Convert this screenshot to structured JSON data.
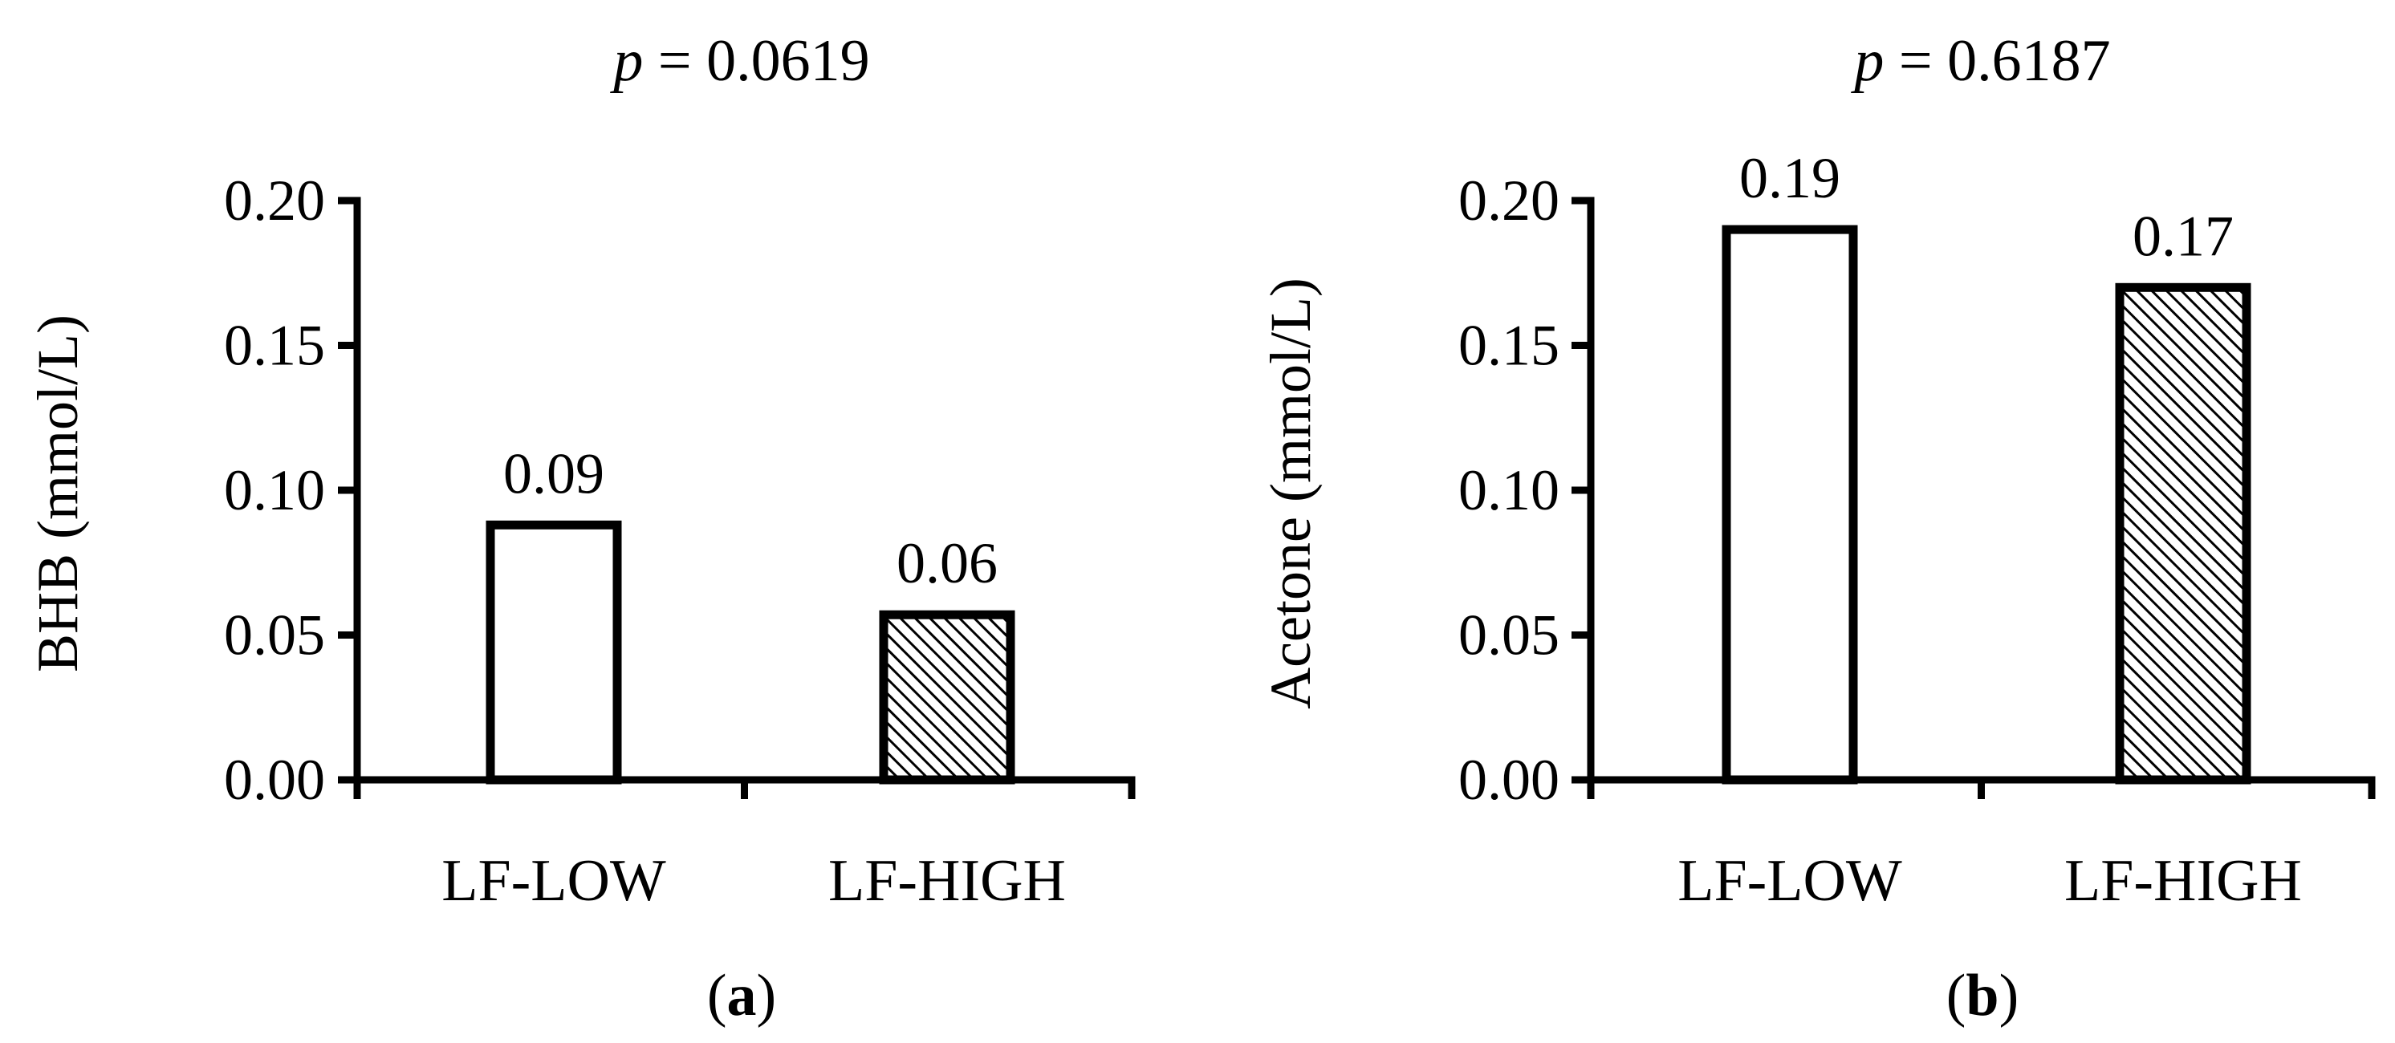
{
  "chart_data": [
    {
      "type": "bar",
      "panel_label": "a",
      "p_label": "p",
      "p_value_text": " = 0.0619",
      "ylabel": "BHB (mmol/L)",
      "xlabel": "",
      "ylim": [
        0,
        0.2
      ],
      "yticks": [
        "0.00",
        "0.05",
        "0.10",
        "0.15",
        "0.20"
      ],
      "categories": [
        "LF-LOW",
        "LF-HIGH"
      ],
      "values": [
        0.088,
        0.057
      ],
      "data_labels": [
        "0.09",
        "0.06"
      ],
      "fills": [
        "solid-white",
        "diagonal-hatch"
      ],
      "grid": false
    },
    {
      "type": "bar",
      "panel_label": "b",
      "p_label": "p",
      "p_value_text": " = 0.6187",
      "ylabel": "Acetone (mmol/L)",
      "xlabel": "",
      "ylim": [
        0,
        0.2
      ],
      "yticks": [
        "0.00",
        "0.05",
        "0.10",
        "0.15",
        "0.20"
      ],
      "categories": [
        "LF-LOW",
        "LF-HIGH"
      ],
      "values": [
        0.19,
        0.17
      ],
      "data_labels": [
        "0.19",
        "0.17"
      ],
      "fills": [
        "solid-white",
        "diagonal-hatch"
      ],
      "grid": false
    }
  ],
  "colors": {
    "ink": "#000000",
    "background": "#ffffff"
  }
}
